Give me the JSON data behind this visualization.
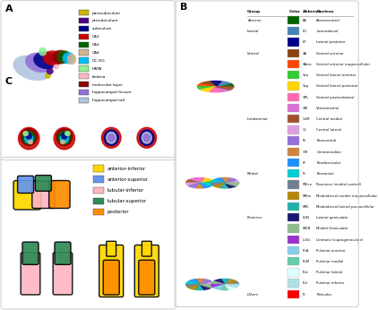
{
  "panel_A_legend": [
    {
      "color": "#c8b400",
      "label": "parasubiculum"
    },
    {
      "color": "#4b0082",
      "label": "presubiculum"
    },
    {
      "color": "#00008b",
      "label": "subiculum"
    },
    {
      "color": "#cc0000",
      "label": "CA1"
    },
    {
      "color": "#006400",
      "label": "CA3"
    },
    {
      "color": "#d2b48c",
      "label": "CA4"
    },
    {
      "color": "#00bfff",
      "label": "GC-DG"
    },
    {
      "color": "#90ee90",
      "label": "HATA"
    },
    {
      "color": "#ffb6c1",
      "label": "fimbria"
    },
    {
      "color": "#8b0000",
      "label": "molecular layer"
    },
    {
      "color": "#9370db",
      "label": "hippocampal fissure"
    },
    {
      "color": "#b0c4de",
      "label": "hippocampal tail"
    }
  ],
  "panel_C_legend": [
    {
      "color": "#ffd700",
      "label": "anterior-inferior"
    },
    {
      "color": "#6495ed",
      "label": "anterior-superior"
    },
    {
      "color": "#ffb6c1",
      "label": "tubular-inferior"
    },
    {
      "color": "#2e8b57",
      "label": "tubular-superior"
    },
    {
      "color": "#ff8c00",
      "label": "posterior"
    }
  ],
  "panel_B_rows": [
    {
      "group": "Anterior",
      "color": "#006400",
      "abbrev": "AV",
      "nucleus": "Anteroventral"
    },
    {
      "group": "Lateral",
      "color": "#4682b4",
      "abbrev": "LD",
      "nucleus": "Laterodorsal"
    },
    {
      "group": "",
      "color": "#00008b",
      "abbrev": "LP",
      "nucleus": "Lateral posterior"
    },
    {
      "group": "Ventral",
      "color": "#8b4513",
      "abbrev": "VA",
      "nucleus": "Ventral anterior"
    },
    {
      "group": "",
      "color": "#ff4500",
      "abbrev": "VAmc",
      "nucleus": "Ventral anterior magnocellular"
    },
    {
      "group": "",
      "color": "#32cd32",
      "abbrev": "VLa",
      "nucleus": "Ventral lateral anterior"
    },
    {
      "group": "",
      "color": "#ffd700",
      "abbrev": "VLp",
      "nucleus": "Ventral lateral posterior"
    },
    {
      "group": "",
      "color": "#ff69b4",
      "abbrev": "VPL",
      "nucleus": "Ventral posterolateral"
    },
    {
      "group": "",
      "color": "#da70d6",
      "abbrev": "VM",
      "nucleus": "Ventromedial"
    },
    {
      "group": "Intralaminar",
      "color": "#a0522d",
      "abbrev": "CeM",
      "nucleus": "Central medial"
    },
    {
      "group": "",
      "color": "#dda0dd",
      "abbrev": "CL",
      "nucleus": "Central lateral"
    },
    {
      "group": "",
      "color": "#9370db",
      "abbrev": "Pc",
      "nucleus": "Paracentral"
    },
    {
      "group": "",
      "color": "#cd853f",
      "abbrev": "CM",
      "nucleus": "Centromedian"
    },
    {
      "group": "",
      "color": "#1e90ff",
      "abbrev": "Pf",
      "nucleus": "Parafascicular"
    },
    {
      "group": "Medial",
      "color": "#00ced1",
      "abbrev": "Pt",
      "nucleus": "Paratenial"
    },
    {
      "group": "",
      "color": "#708090",
      "abbrev": "MV-re",
      "nucleus": "Reuniens (medial ventral)"
    },
    {
      "group": "",
      "color": "#b8860b",
      "abbrev": "MDm",
      "nucleus": "Mediodorsal medial magnocellular"
    },
    {
      "group": "",
      "color": "#20b2aa",
      "abbrev": "MDl",
      "nucleus": "Mediodorsal lateral parvocellular"
    },
    {
      "group": "Posterior",
      "color": "#191970",
      "abbrev": "LGN",
      "nucleus": "Lateral geniculate"
    },
    {
      "group": "",
      "color": "#8fbc8f",
      "abbrev": "MGN",
      "nucleus": "Medial Geniculate"
    },
    {
      "group": "",
      "color": "#9932cc",
      "abbrev": "L-SG",
      "nucleus": "Limitans (suprageniculate)"
    },
    {
      "group": "",
      "color": "#87ceeb",
      "abbrev": "PuA",
      "nucleus": "Pulvinar anterior"
    },
    {
      "group": "",
      "color": "#66cdaa",
      "abbrev": "PuM",
      "nucleus": "Pulvinar medial"
    },
    {
      "group": "",
      "color": "#e0ffff",
      "abbrev": "PuL",
      "nucleus": "Pulvinar lateral"
    },
    {
      "group": "",
      "color": "#b0e0e6",
      "abbrev": "PuI",
      "nucleus": "Pulvinar inferior"
    },
    {
      "group": "Others",
      "color": "#ff0000",
      "abbrev": "R",
      "nucleus": "Reticular"
    }
  ],
  "bg_color": "#ffffff"
}
